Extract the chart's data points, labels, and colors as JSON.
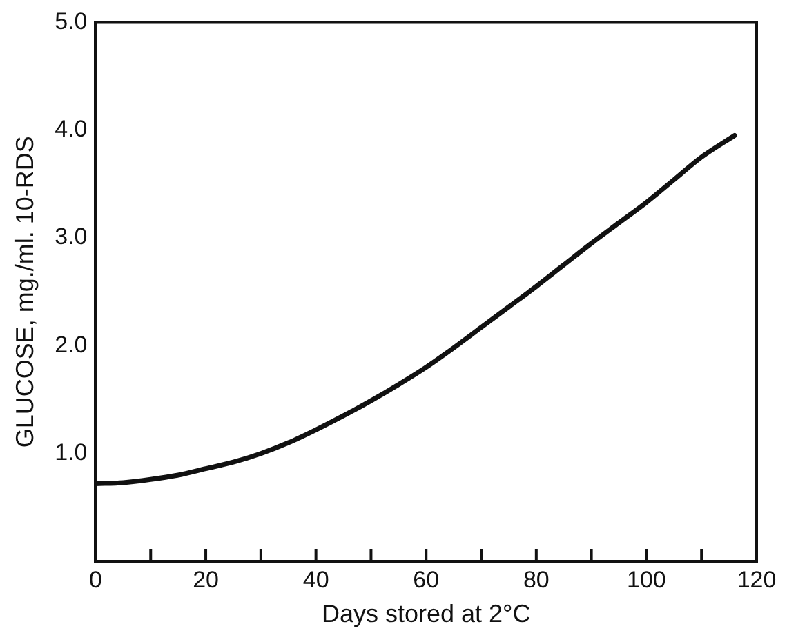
{
  "chart_data": {
    "type": "line",
    "xlabel": "Days stored at 2°C",
    "ylabel": "GLUCOSE, mg./ml. 10-RDS",
    "x": [
      0,
      5,
      10,
      15,
      20,
      25,
      30,
      35,
      40,
      45,
      50,
      55,
      60,
      65,
      70,
      75,
      80,
      85,
      90,
      95,
      100,
      105,
      110,
      116
    ],
    "series": [
      {
        "color": "#111111",
        "values": [
          0.72,
          0.73,
          0.76,
          0.8,
          0.86,
          0.92,
          1.0,
          1.1,
          1.22,
          1.35,
          1.49,
          1.64,
          1.8,
          1.98,
          2.17,
          2.36,
          2.55,
          2.75,
          2.95,
          3.14,
          3.33,
          3.54,
          3.75,
          3.95
        ]
      }
    ],
    "xlim": [
      0,
      120
    ],
    "ylim": [
      0,
      5
    ],
    "xticks": [
      0,
      {
        "value": 10,
        "label": null
      },
      20,
      {
        "value": 30,
        "label": null
      },
      40,
      {
        "value": 50,
        "label": null
      },
      60,
      {
        "value": 70,
        "label": null
      },
      80,
      {
        "value": 90,
        "label": null
      },
      100,
      {
        "value": 110,
        "label": null
      },
      120
    ],
    "yticks": [
      {
        "value": 1,
        "label": "1.0"
      },
      {
        "value": 2,
        "label": "2.0"
      },
      {
        "value": 3,
        "label": "3.0"
      },
      {
        "value": 4,
        "label": "4.0"
      },
      {
        "value": 5,
        "label": "5.0"
      }
    ],
    "grid": false,
    "legend": false,
    "marker": "none",
    "line_style": "solid"
  }
}
